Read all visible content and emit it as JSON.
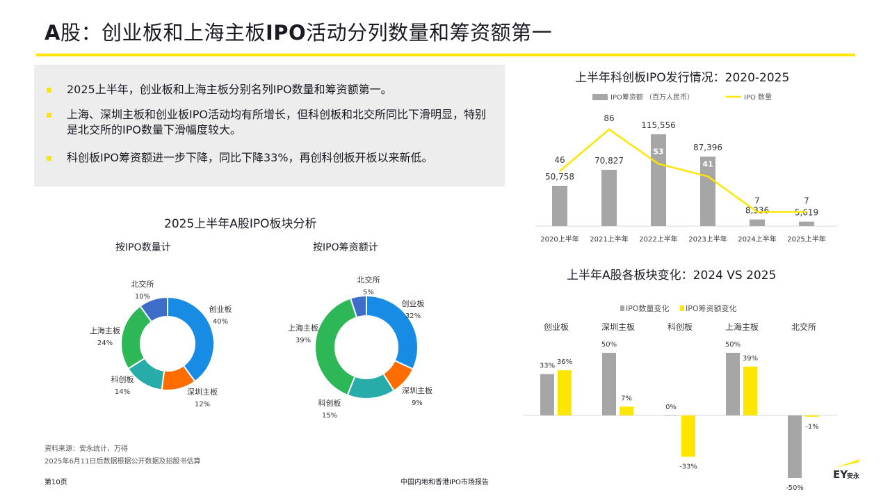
{
  "header": {
    "title_bold": "A",
    "title_rest": "股：创业板和上海主板",
    "title_ipo": "IPO",
    "title_end": "活动分列数量和筹资额第一"
  },
  "summary": {
    "bullets": [
      "2025上半年，创业板和上海主板分别名列IPO数量和筹资额第一。",
      "上海、深圳主板和创业板IPO活动均有所增长，但科创板和北交所同比下滑明显，特别是北交所的IPO数量下滑幅度较大。",
      "科创板IPO筹资额进一步下降，同比下降33%，再创科创板开板以来新低。"
    ]
  },
  "colors": {
    "accent": "#ffe600",
    "gray": "#a6a6a6",
    "blue": "#188ce5",
    "orange": "#ff6d00",
    "teal": "#27acaa",
    "green": "#2db757",
    "purple": "#3d6cc9"
  },
  "chart_data": [
    {
      "type": "pie",
      "title": "2025上半年A股IPO板块分析",
      "subtitle": "按IPO数量计",
      "categories": [
        "创业板",
        "深圳主板",
        "科创板",
        "上海主板",
        "北交所"
      ],
      "values": [
        40,
        12,
        14,
        24,
        10
      ],
      "labels": [
        "40%",
        "12%",
        "14%",
        "24%",
        "10%"
      ]
    },
    {
      "type": "pie",
      "subtitle": "按IPO筹资额计",
      "categories": [
        "创业板",
        "深圳主板",
        "科创板",
        "上海主板",
        "北交所"
      ],
      "values": [
        32,
        9,
        15,
        39,
        5
      ],
      "labels": [
        "32%",
        "9%",
        "15%",
        "39%",
        "5%"
      ]
    },
    {
      "type": "bar",
      "title": "上半年科创板IPO发行情况：2020-2025",
      "categories": [
        "2020上半年",
        "2021上半年",
        "2022上半年",
        "2023上半年",
        "2024上半年",
        "2025上半年"
      ],
      "series": [
        {
          "name": "IPO筹资额 （百万人民币）",
          "values": [
            50758,
            70827,
            115556,
            87396,
            8336,
            5619
          ],
          "labels": [
            "50,758",
            "70,827",
            "115,556",
            "87,396",
            "8,336",
            "5,619"
          ]
        },
        {
          "name": "IPO 数量",
          "values": [
            46,
            86,
            53,
            41,
            7,
            7
          ],
          "labels": [
            "46",
            "86",
            "53",
            "41",
            "7",
            "7"
          ]
        }
      ]
    },
    {
      "type": "bar",
      "title": "上半年A股各板块变化：2024 VS 2025",
      "categories": [
        "创业板",
        "深圳主板",
        "科创板",
        "上海主板",
        "北交所"
      ],
      "series": [
        {
          "name": "IPO数量变化",
          "values": [
            33,
            50,
            0,
            50,
            -50
          ],
          "labels": [
            "33%",
            "50%",
            "0%",
            "50%",
            "-50%"
          ]
        },
        {
          "name": "IPO筹资额变化",
          "values": [
            36,
            7,
            -33,
            39,
            -1
          ],
          "labels": [
            "36%",
            "7%",
            "-33%",
            "39%",
            "-1%"
          ]
        }
      ]
    }
  ],
  "footer": {
    "source": "资料来源：安永统计、万得",
    "note": "2025年6月11日后数据根据公开数据及招股书估算",
    "page": "第10页",
    "report": "中国内地和香港IPO市场报告",
    "logo_text": "EY",
    "logo_cn": "安永"
  }
}
